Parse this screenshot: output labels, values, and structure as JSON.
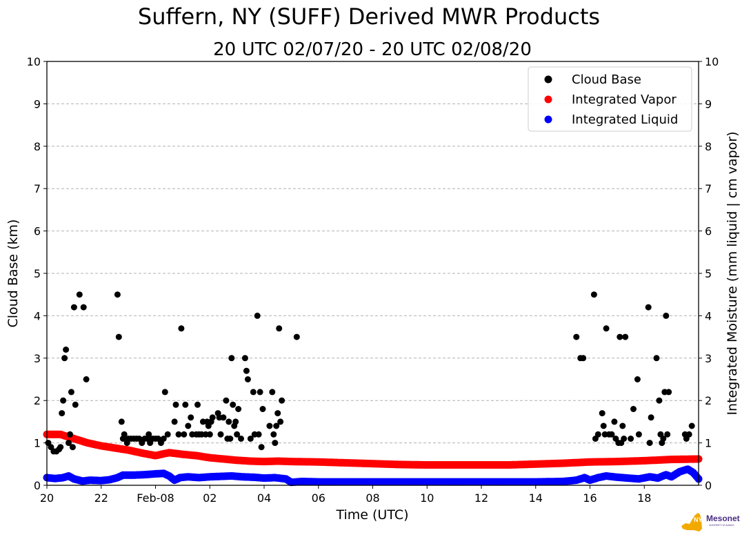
{
  "chart_data": {
    "type": "scatter",
    "title": "Suffern, NY (SUFF) Derived MWR Products",
    "subtitle": "20 UTC 02/07/20 - 20 UTC 02/08/20",
    "xlabel": "Time (UTC)",
    "ylabel": "Cloud Base (km)",
    "ylabel_right": "Integrated Moisture (mm liquid | cm vapor)",
    "x_unit": "hours since 20 UTC 02/07/20",
    "xlim": [
      0,
      24
    ],
    "ylim": [
      0,
      10
    ],
    "ylim_right": [
      0,
      10
    ],
    "x_ticks": [
      {
        "x": 0,
        "label": "20"
      },
      {
        "x": 2,
        "label": "22"
      },
      {
        "x": 4,
        "label": "Feb-08"
      },
      {
        "x": 6,
        "label": "02"
      },
      {
        "x": 8,
        "label": "04"
      },
      {
        "x": 10,
        "label": "06"
      },
      {
        "x": 12,
        "label": "08"
      },
      {
        "x": 14,
        "label": "10"
      },
      {
        "x": 16,
        "label": "12"
      },
      {
        "x": 18,
        "label": "14"
      },
      {
        "x": 20,
        "label": "16"
      },
      {
        "x": 22,
        "label": "18"
      }
    ],
    "y_ticks": [
      "0",
      "1",
      "2",
      "3",
      "4",
      "5",
      "6",
      "7",
      "8",
      "9",
      "10"
    ],
    "grid": "horizontal dashed",
    "legend_position": "top-right",
    "series": [
      {
        "name": "Cloud Base",
        "color": "#000000",
        "points": [
          [
            0.05,
            1.0
          ],
          [
            0.15,
            0.9
          ],
          [
            0.25,
            0.8
          ],
          [
            0.35,
            0.8
          ],
          [
            0.45,
            0.85
          ],
          [
            0.5,
            0.9
          ],
          [
            0.55,
            1.7
          ],
          [
            0.6,
            2.0
          ],
          [
            0.65,
            3.0
          ],
          [
            0.7,
            3.2
          ],
          [
            0.8,
            1.0
          ],
          [
            0.85,
            1.2
          ],
          [
            0.9,
            2.2
          ],
          [
            0.95,
            0.9
          ],
          [
            1.0,
            4.2
          ],
          [
            1.05,
            1.9
          ],
          [
            1.2,
            4.5
          ],
          [
            1.35,
            4.2
          ],
          [
            1.45,
            2.5
          ],
          [
            2.6,
            4.5
          ],
          [
            2.65,
            3.5
          ],
          [
            2.75,
            1.5
          ],
          [
            2.8,
            1.1
          ],
          [
            2.85,
            1.2
          ],
          [
            2.95,
            1.0
          ],
          [
            3.0,
            1.1
          ],
          [
            3.1,
            1.1
          ],
          [
            3.2,
            1.1
          ],
          [
            3.3,
            1.1
          ],
          [
            3.4,
            1.1
          ],
          [
            3.5,
            1.0
          ],
          [
            3.6,
            1.1
          ],
          [
            3.7,
            1.1
          ],
          [
            3.75,
            1.2
          ],
          [
            3.8,
            1.0
          ],
          [
            3.9,
            1.1
          ],
          [
            4.0,
            1.1
          ],
          [
            4.1,
            1.1
          ],
          [
            4.2,
            1.0
          ],
          [
            4.3,
            1.1
          ],
          [
            4.35,
            2.2
          ],
          [
            4.45,
            1.2
          ],
          [
            4.7,
            1.5
          ],
          [
            4.75,
            1.9
          ],
          [
            4.85,
            1.2
          ],
          [
            4.95,
            3.7
          ],
          [
            5.05,
            1.2
          ],
          [
            5.1,
            1.9
          ],
          [
            5.2,
            1.4
          ],
          [
            5.3,
            1.6
          ],
          [
            5.35,
            1.2
          ],
          [
            5.5,
            1.2
          ],
          [
            5.55,
            1.9
          ],
          [
            5.6,
            1.2
          ],
          [
            5.7,
            1.2
          ],
          [
            5.75,
            1.5
          ],
          [
            5.85,
            1.2
          ],
          [
            5.9,
            1.5
          ],
          [
            5.95,
            1.4
          ],
          [
            6.0,
            1.2
          ],
          [
            6.05,
            1.5
          ],
          [
            6.1,
            1.6
          ],
          [
            6.3,
            1.7
          ],
          [
            6.35,
            1.6
          ],
          [
            6.4,
            1.2
          ],
          [
            6.5,
            1.6
          ],
          [
            6.6,
            2.0
          ],
          [
            6.65,
            1.1
          ],
          [
            6.7,
            1.5
          ],
          [
            6.75,
            1.1
          ],
          [
            6.8,
            3.0
          ],
          [
            6.85,
            1.9
          ],
          [
            6.9,
            1.4
          ],
          [
            6.95,
            1.5
          ],
          [
            7.0,
            1.2
          ],
          [
            7.05,
            1.8
          ],
          [
            7.15,
            1.1
          ],
          [
            7.3,
            3.0
          ],
          [
            7.35,
            2.7
          ],
          [
            7.4,
            2.5
          ],
          [
            7.5,
            1.1
          ],
          [
            7.6,
            2.2
          ],
          [
            7.65,
            1.2
          ],
          [
            7.75,
            4.0
          ],
          [
            7.8,
            1.2
          ],
          [
            7.85,
            2.2
          ],
          [
            7.9,
            0.9
          ],
          [
            7.95,
            1.8
          ],
          [
            8.2,
            1.4
          ],
          [
            8.3,
            2.2
          ],
          [
            8.35,
            1.2
          ],
          [
            8.4,
            1.0
          ],
          [
            8.45,
            1.4
          ],
          [
            8.5,
            1.7
          ],
          [
            8.55,
            3.7
          ],
          [
            8.6,
            1.5
          ],
          [
            8.65,
            2.0
          ],
          [
            9.2,
            3.5
          ],
          [
            19.5,
            3.5
          ],
          [
            19.65,
            3.0
          ],
          [
            19.75,
            3.0
          ],
          [
            20.15,
            4.5
          ],
          [
            20.2,
            1.1
          ],
          [
            20.3,
            1.2
          ],
          [
            20.45,
            1.7
          ],
          [
            20.5,
            1.4
          ],
          [
            20.55,
            1.2
          ],
          [
            20.6,
            3.7
          ],
          [
            20.7,
            1.2
          ],
          [
            20.8,
            1.2
          ],
          [
            20.9,
            1.5
          ],
          [
            20.95,
            1.1
          ],
          [
            21.05,
            1.0
          ],
          [
            21.1,
            3.5
          ],
          [
            21.15,
            1.0
          ],
          [
            21.2,
            1.4
          ],
          [
            21.25,
            1.1
          ],
          [
            21.3,
            3.5
          ],
          [
            21.5,
            1.1
          ],
          [
            21.6,
            1.8
          ],
          [
            21.75,
            2.5
          ],
          [
            21.8,
            1.2
          ],
          [
            22.15,
            4.2
          ],
          [
            22.2,
            1.0
          ],
          [
            22.25,
            1.6
          ],
          [
            22.45,
            3.0
          ],
          [
            22.55,
            2.0
          ],
          [
            22.6,
            1.2
          ],
          [
            22.65,
            1.0
          ],
          [
            22.7,
            1.1
          ],
          [
            22.75,
            2.2
          ],
          [
            22.8,
            4.0
          ],
          [
            22.85,
            1.2
          ],
          [
            22.9,
            2.2
          ],
          [
            23.5,
            1.2
          ],
          [
            23.55,
            1.1
          ],
          [
            23.65,
            1.2
          ],
          [
            23.75,
            1.4
          ]
        ]
      },
      {
        "name": "Integrated Vapor",
        "color": "#ff0000",
        "points": [
          [
            0.0,
            1.2
          ],
          [
            0.5,
            1.2
          ],
          [
            1.0,
            1.1
          ],
          [
            1.5,
            1.0
          ],
          [
            2.0,
            0.93
          ],
          [
            2.5,
            0.88
          ],
          [
            3.0,
            0.83
          ],
          [
            3.5,
            0.76
          ],
          [
            4.0,
            0.7
          ],
          [
            4.5,
            0.77
          ],
          [
            5.0,
            0.73
          ],
          [
            5.5,
            0.7
          ],
          [
            6.0,
            0.65
          ],
          [
            6.5,
            0.62
          ],
          [
            7.0,
            0.59
          ],
          [
            7.5,
            0.57
          ],
          [
            8.0,
            0.56
          ],
          [
            8.5,
            0.57
          ],
          [
            9.0,
            0.56
          ],
          [
            10.0,
            0.55
          ],
          [
            11.0,
            0.53
          ],
          [
            12.0,
            0.51
          ],
          [
            13.0,
            0.49
          ],
          [
            14.0,
            0.48
          ],
          [
            15.0,
            0.48
          ],
          [
            16.0,
            0.48
          ],
          [
            17.0,
            0.48
          ],
          [
            18.0,
            0.5
          ],
          [
            19.0,
            0.52
          ],
          [
            20.0,
            0.55
          ],
          [
            21.0,
            0.56
          ],
          [
            22.0,
            0.58
          ],
          [
            23.0,
            0.61
          ],
          [
            24.0,
            0.62
          ]
        ]
      },
      {
        "name": "Integrated Liquid",
        "color": "#0000ff",
        "points": [
          [
            0.0,
            0.18
          ],
          [
            0.3,
            0.16
          ],
          [
            0.6,
            0.18
          ],
          [
            0.8,
            0.22
          ],
          [
            1.0,
            0.15
          ],
          [
            1.3,
            0.1
          ],
          [
            1.6,
            0.12
          ],
          [
            2.0,
            0.11
          ],
          [
            2.3,
            0.13
          ],
          [
            2.6,
            0.18
          ],
          [
            2.8,
            0.24
          ],
          [
            3.2,
            0.24
          ],
          [
            3.6,
            0.25
          ],
          [
            4.0,
            0.27
          ],
          [
            4.3,
            0.28
          ],
          [
            4.5,
            0.22
          ],
          [
            4.7,
            0.12
          ],
          [
            4.9,
            0.18
          ],
          [
            5.2,
            0.2
          ],
          [
            5.6,
            0.18
          ],
          [
            6.0,
            0.2
          ],
          [
            6.4,
            0.21
          ],
          [
            6.8,
            0.22
          ],
          [
            7.2,
            0.2
          ],
          [
            7.6,
            0.19
          ],
          [
            8.0,
            0.17
          ],
          [
            8.4,
            0.18
          ],
          [
            8.8,
            0.15
          ],
          [
            9.0,
            0.07
          ],
          [
            9.4,
            0.09
          ],
          [
            10.0,
            0.08
          ],
          [
            12.0,
            0.08
          ],
          [
            14.0,
            0.08
          ],
          [
            16.0,
            0.08
          ],
          [
            18.0,
            0.08
          ],
          [
            19.0,
            0.09
          ],
          [
            19.5,
            0.12
          ],
          [
            19.8,
            0.18
          ],
          [
            20.0,
            0.12
          ],
          [
            20.3,
            0.18
          ],
          [
            20.6,
            0.22
          ],
          [
            21.0,
            0.19
          ],
          [
            21.4,
            0.17
          ],
          [
            21.8,
            0.15
          ],
          [
            22.2,
            0.2
          ],
          [
            22.5,
            0.17
          ],
          [
            22.8,
            0.25
          ],
          [
            23.0,
            0.2
          ],
          [
            23.3,
            0.32
          ],
          [
            23.6,
            0.38
          ],
          [
            23.8,
            0.3
          ],
          [
            24.0,
            0.15
          ]
        ]
      }
    ]
  },
  "logo": {
    "text": "Mesonet",
    "badge": "NYS",
    "sub": "UNIVERSITY AT ALBANY",
    "color_state": "#f2a900",
    "color_text": "#4b2e83"
  }
}
